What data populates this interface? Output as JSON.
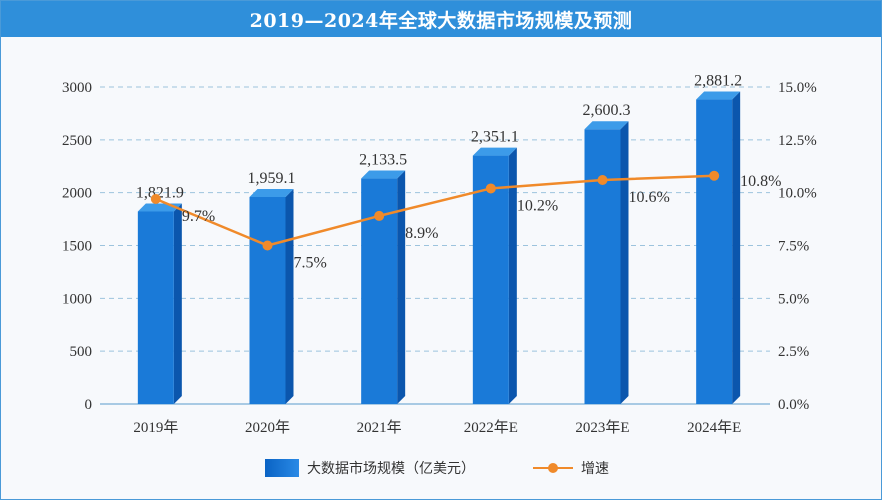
{
  "chart_data": {
    "type": "bar",
    "title": "2019—2024年全球大数据市场规模及预测",
    "categories": [
      "2019年",
      "2020年",
      "2021年",
      "2022年E",
      "2023年E",
      "2024年E"
    ],
    "series": [
      {
        "name": "大数据市场规模（亿美元）",
        "type": "bar",
        "axis": "left",
        "values": [
          1821.9,
          1959.1,
          2133.5,
          2351.1,
          2600.3,
          2881.2
        ],
        "labels": [
          "1,821.9",
          "1,959.1",
          "2,133.5",
          "2,351.1",
          "2,600.3",
          "2,881.2"
        ]
      },
      {
        "name": "增速",
        "type": "line",
        "axis": "right",
        "values": [
          9.7,
          7.5,
          8.9,
          10.2,
          10.6,
          10.8
        ],
        "labels": [
          "9.7%",
          "7.5%",
          "8.9%",
          "10.2%",
          "10.6%",
          "10.8%"
        ]
      }
    ],
    "ylim": [
      0,
      3000
    ],
    "y_ticks": [
      "0",
      "500",
      "1000",
      "1500",
      "2000",
      "2500",
      "3000"
    ],
    "y2lim": [
      0,
      15
    ],
    "y2_ticks": [
      "0.0%",
      "2.5%",
      "5.0%",
      "7.5%",
      "10.0%",
      "12.5%",
      "15.0%"
    ],
    "grid": true,
    "legend_position": "bottom",
    "colors": {
      "bar": "#1a7ad8",
      "bar_dark": "#0b56ad",
      "bar_top": "#3c9be9",
      "line": "#f08a2a",
      "grid": "#9cc3dd",
      "title_bg": "#2f8fda"
    }
  },
  "legend": {
    "bar_label": "大数据市场规模（亿美元）",
    "line_label": "增速"
  }
}
